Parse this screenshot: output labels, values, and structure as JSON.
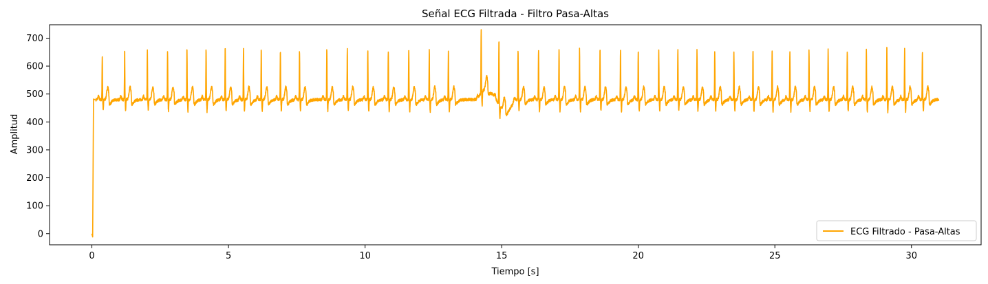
{
  "chart_data": {
    "type": "line",
    "title": "Señal ECG Filtrada - Filtro Pasa-Altas",
    "xlabel": "Tiempo [s]",
    "ylabel": "Amplitud",
    "xlim": [
      -1.55,
      32.55
    ],
    "ylim": [
      -40,
      748
    ],
    "xticks": [
      0,
      5,
      10,
      15,
      20,
      25,
      30
    ],
    "yticks": [
      0,
      100,
      200,
      300,
      400,
      500,
      600,
      700
    ],
    "grid": false,
    "legend_position": "lower-right",
    "series": [
      {
        "name": "ECG Filtrado - Pasa-Altas",
        "color": "#ffa500",
        "baseline": 480,
        "duration": 31,
        "initial_points": [
          [
            0,
            0
          ],
          [
            0.03,
            -12
          ],
          [
            0.06,
            482
          ],
          [
            0.15,
            478
          ]
        ],
        "r_peaks": [
          [
            0.38,
            640
          ],
          [
            1.2,
            657
          ],
          [
            2.03,
            655
          ],
          [
            2.77,
            650
          ],
          [
            3.48,
            665
          ],
          [
            4.18,
            660
          ],
          [
            4.88,
            665
          ],
          [
            5.55,
            665
          ],
          [
            6.2,
            660
          ],
          [
            6.9,
            655
          ],
          [
            7.6,
            655
          ],
          [
            8.6,
            660
          ],
          [
            9.35,
            660
          ],
          [
            10.1,
            660
          ],
          [
            10.85,
            655
          ],
          [
            11.6,
            660
          ],
          [
            12.35,
            660
          ],
          [
            13.05,
            655
          ],
          [
            14.25,
            710
          ],
          [
            14.9,
            708
          ],
          [
            15.6,
            655
          ],
          [
            16.35,
            660
          ],
          [
            17.1,
            660
          ],
          [
            17.85,
            660
          ],
          [
            18.6,
            660
          ],
          [
            19.35,
            660
          ],
          [
            20.0,
            660
          ],
          [
            20.75,
            655
          ],
          [
            21.45,
            660
          ],
          [
            22.15,
            655
          ],
          [
            22.8,
            655
          ],
          [
            23.5,
            655
          ],
          [
            24.2,
            660
          ],
          [
            24.9,
            655
          ],
          [
            25.55,
            655
          ],
          [
            26.25,
            655
          ],
          [
            26.95,
            660
          ],
          [
            27.65,
            655
          ],
          [
            28.35,
            660
          ],
          [
            29.1,
            675
          ],
          [
            29.75,
            665
          ],
          [
            30.4,
            655
          ]
        ]
      }
    ]
  }
}
